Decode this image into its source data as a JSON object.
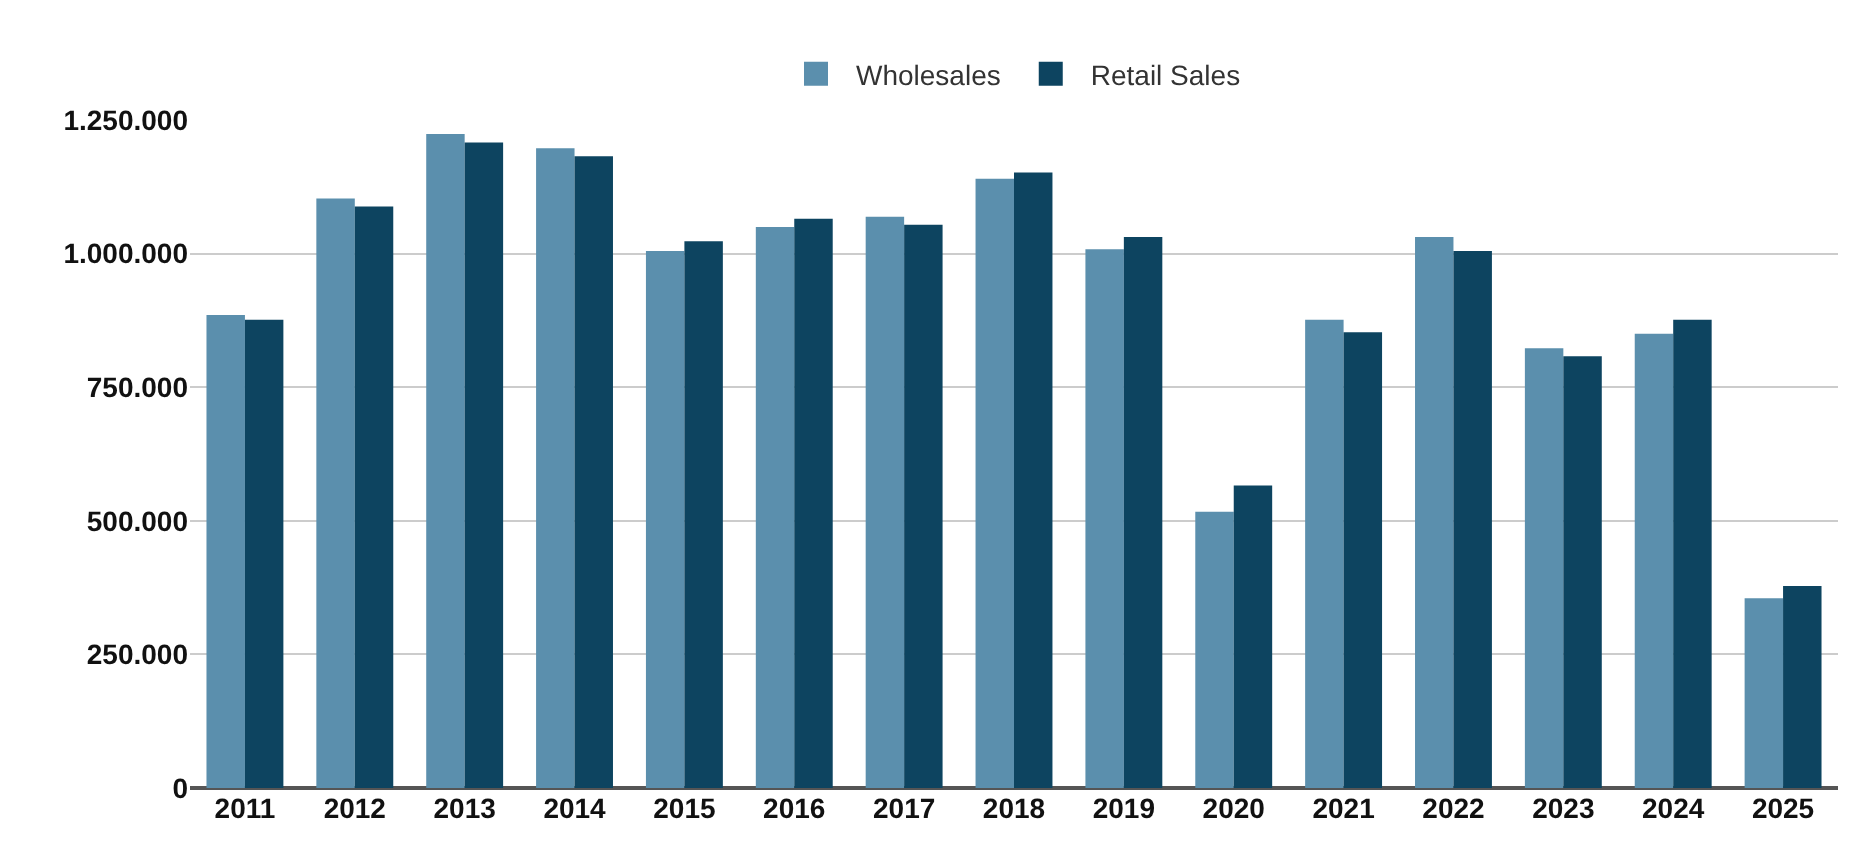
{
  "chart_data": {
    "type": "bar",
    "categories": [
      "2011",
      "2012",
      "2013",
      "2014",
      "2015",
      "2016",
      "2017",
      "2018",
      "2019",
      "2020",
      "2021",
      "2022",
      "2023",
      "2024",
      "2025"
    ],
    "series": [
      {
        "name": "Wholesales",
        "color": "#5b8fad",
        "values": [
          885000,
          1103000,
          1224000,
          1197000,
          1005000,
          1050000,
          1069000,
          1140000,
          1008000,
          517000,
          876000,
          1031000,
          823000,
          850000,
          355000
        ]
      },
      {
        "name": "Retail Sales",
        "color": "#0d4460",
        "values": [
          876000,
          1088000,
          1208000,
          1182000,
          1023000,
          1065000,
          1054000,
          1152000,
          1031000,
          566000,
          853000,
          1005000,
          808000,
          876000,
          378000
        ]
      }
    ],
    "ylim": [
      0,
      1250000
    ],
    "yticks": [
      {
        "value": 0,
        "label": "0"
      },
      {
        "value": 250000,
        "label": "250.000"
      },
      {
        "value": 500000,
        "label": "500.000"
      },
      {
        "value": 750000,
        "label": "750.000"
      },
      {
        "value": 1000000,
        "label": "1.000.000"
      },
      {
        "value": 1250000,
        "label": "1.250.000"
      }
    ],
    "grid": "y",
    "legend": "top"
  }
}
